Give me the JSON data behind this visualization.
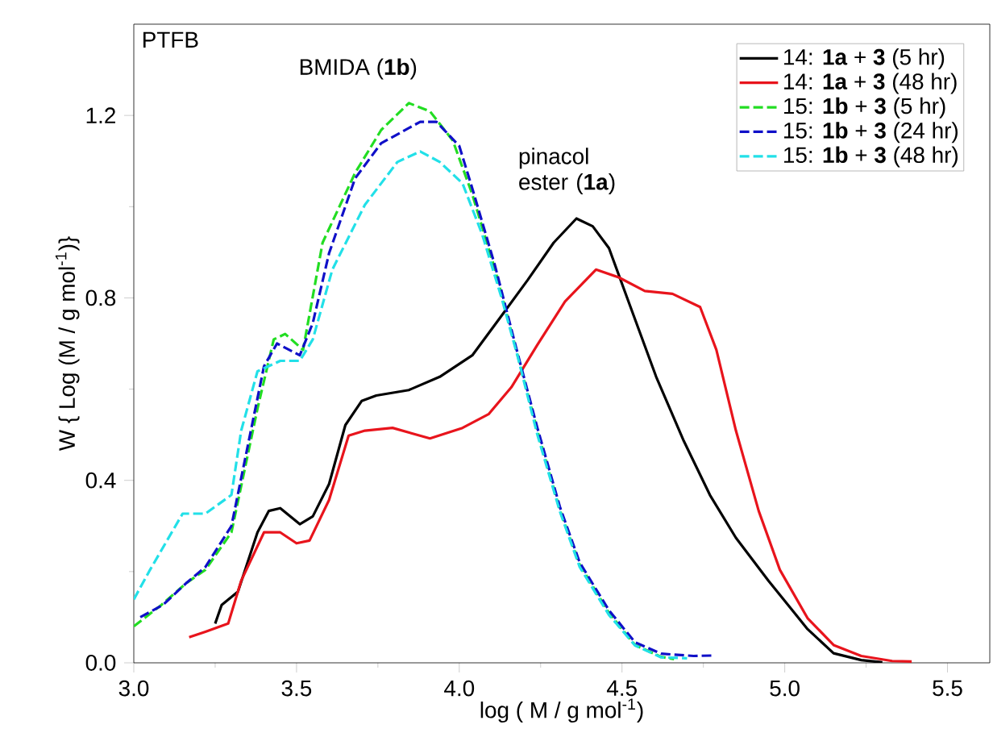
{
  "chart_data": {
    "type": "line",
    "xlabel": "log ( M / g mol$^{-1}$)",
    "ylabel": "W { Log (M / g mol$^{-1}$)}",
    "xlim": [
      3.0,
      5.63
    ],
    "ylim": [
      0,
      1.4
    ],
    "xticks": [
      {
        "value": 3.0,
        "label": "3.0"
      },
      {
        "value": 3.5,
        "label": "3.5"
      },
      {
        "value": 4.0,
        "label": "4.0"
      },
      {
        "value": 4.5,
        "label": "4.5"
      },
      {
        "value": 5.0,
        "label": "5.0"
      },
      {
        "value": 5.5,
        "label": "5.5"
      }
    ],
    "yticks": [
      {
        "value": 0,
        "label": "0.0"
      },
      {
        "value": 0.4,
        "label": "0.4"
      },
      {
        "value": 0.8,
        "label": "0.8"
      },
      {
        "value": 1.2,
        "label": "1.2"
      }
    ],
    "grid": false,
    "legend": "top right",
    "marker": "none",
    "annotations": [
      "PTFB",
      "BMIDA (**1b**)",
      "pinacol ester (**1a**)"
    ],
    "series": [
      {
        "name": "14: **1a** + **3** (5 hr)",
        "color": "#000000",
        "line_style": "solid",
        "x": [
          3.25,
          3.27,
          3.32,
          3.38,
          3.415,
          3.45,
          3.51,
          3.55,
          3.6,
          3.65,
          3.7,
          3.745,
          3.845,
          3.94,
          4.04,
          4.125,
          4.21,
          4.29,
          4.36,
          4.41,
          4.46,
          4.52,
          4.605,
          4.69,
          4.77,
          4.85,
          4.95,
          5.07,
          5.15,
          5.235,
          5.3
        ],
        "values": [
          0.086,
          0.127,
          0.156,
          0.286,
          0.333,
          0.339,
          0.304,
          0.321,
          0.392,
          0.521,
          0.574,
          0.586,
          0.598,
          0.627,
          0.674,
          0.756,
          0.839,
          0.921,
          0.974,
          0.957,
          0.909,
          0.792,
          0.627,
          0.486,
          0.368,
          0.274,
          0.18,
          0.074,
          0.021,
          0.006,
          0.001
        ]
      },
      {
        "name": "14: **1a** + **3** (48 hr)",
        "color": "#e8141c",
        "line_style": "solid",
        "x": [
          3.17,
          3.22,
          3.29,
          3.33,
          3.4,
          3.45,
          3.5,
          3.54,
          3.6,
          3.66,
          3.71,
          3.795,
          3.91,
          4.01,
          4.09,
          4.16,
          4.24,
          4.325,
          4.42,
          4.49,
          4.57,
          4.655,
          4.74,
          4.79,
          4.85,
          4.92,
          4.985,
          5.07,
          5.15,
          5.235,
          5.33,
          5.39
        ],
        "values": [
          0.056,
          0.068,
          0.086,
          0.18,
          0.286,
          0.286,
          0.262,
          0.268,
          0.357,
          0.498,
          0.509,
          0.515,
          0.492,
          0.515,
          0.545,
          0.604,
          0.697,
          0.792,
          0.862,
          0.845,
          0.815,
          0.809,
          0.78,
          0.686,
          0.509,
          0.333,
          0.204,
          0.098,
          0.039,
          0.015,
          0.004,
          0.003
        ]
      },
      {
        "name": "15: **1b** + **3** (5 hr)",
        "color": "#22dd22",
        "line_style": "dashed",
        "x": [
          3.0,
          3.085,
          3.16,
          3.22,
          3.3,
          3.38,
          3.43,
          3.465,
          3.52,
          3.58,
          3.68,
          3.76,
          3.845,
          3.91,
          3.98,
          4.04,
          4.11,
          4.175,
          4.24,
          4.31,
          4.37,
          4.46,
          4.54,
          4.62,
          4.66
        ],
        "values": [
          0.08,
          0.127,
          0.174,
          0.204,
          0.286,
          0.557,
          0.709,
          0.721,
          0.686,
          0.921,
          1.074,
          1.168,
          1.227,
          1.209,
          1.145,
          1.027,
          0.862,
          0.686,
          0.509,
          0.333,
          0.215,
          0.109,
          0.039,
          0.013,
          0.008
        ]
      },
      {
        "name": "15: **1b** + **3** (24 hr)",
        "color": "#1010c8",
        "line_style": "dashed",
        "x": [
          3.02,
          3.09,
          3.16,
          3.22,
          3.3,
          3.4,
          3.44,
          3.51,
          3.55,
          3.6,
          3.68,
          3.76,
          3.88,
          3.93,
          4.0,
          4.04,
          4.11,
          4.175,
          4.24,
          4.31,
          4.37,
          4.46,
          4.54,
          4.62,
          4.72,
          4.78
        ],
        "values": [
          0.1,
          0.127,
          0.174,
          0.21,
          0.3,
          0.65,
          0.7,
          0.674,
          0.745,
          0.898,
          1.062,
          1.139,
          1.186,
          1.186,
          1.133,
          1.04,
          0.87,
          0.69,
          0.515,
          0.34,
          0.22,
          0.115,
          0.045,
          0.02,
          0.015,
          0.016
        ]
      },
      {
        "name": "15: **1b** + **3** (48 hr)",
        "color": "#22e0e8",
        "line_style": "dashed",
        "x": [
          3.0,
          3.05,
          3.15,
          3.22,
          3.3,
          3.33,
          3.38,
          3.45,
          3.51,
          3.55,
          3.61,
          3.71,
          3.81,
          3.88,
          3.94,
          4.01,
          4.07,
          4.13,
          4.18,
          4.24,
          4.31,
          4.37,
          4.46,
          4.54,
          4.62,
          4.7
        ],
        "values": [
          0.139,
          0.204,
          0.327,
          0.327,
          0.368,
          0.509,
          0.639,
          0.662,
          0.662,
          0.709,
          0.862,
          1.004,
          1.098,
          1.121,
          1.098,
          1.051,
          0.94,
          0.8,
          0.67,
          0.5,
          0.33,
          0.21,
          0.105,
          0.038,
          0.012,
          0.01
        ]
      }
    ]
  }
}
